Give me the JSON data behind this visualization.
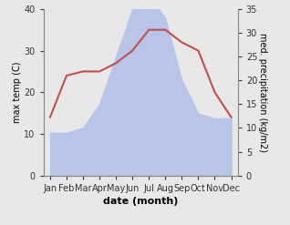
{
  "months": [
    "Jan",
    "Feb",
    "Mar",
    "Apr",
    "May",
    "Jun",
    "Jul",
    "Aug",
    "Sep",
    "Oct",
    "Nov",
    "Dec"
  ],
  "temp": [
    14,
    24,
    25,
    25,
    27,
    30,
    35,
    35,
    32,
    30,
    20,
    14
  ],
  "precip": [
    9,
    9,
    10,
    15,
    25,
    35,
    38,
    33,
    20,
    13,
    12,
    12
  ],
  "temp_color": "#c0504d",
  "precip_fill_color": "#b8c4e8",
  "left_ylim": [
    0,
    40
  ],
  "right_ylim": [
    0,
    35
  ],
  "left_yticks": [
    0,
    10,
    20,
    30,
    40
  ],
  "right_yticks": [
    0,
    5,
    10,
    15,
    20,
    25,
    30,
    35
  ],
  "ylabel_left": "max temp (C)",
  "ylabel_right": "med. precipitation (kg/m2)",
  "xlabel": "date (month)",
  "bg_color": "#e8e8e8",
  "fig_bg_color": "#e8e8e8"
}
